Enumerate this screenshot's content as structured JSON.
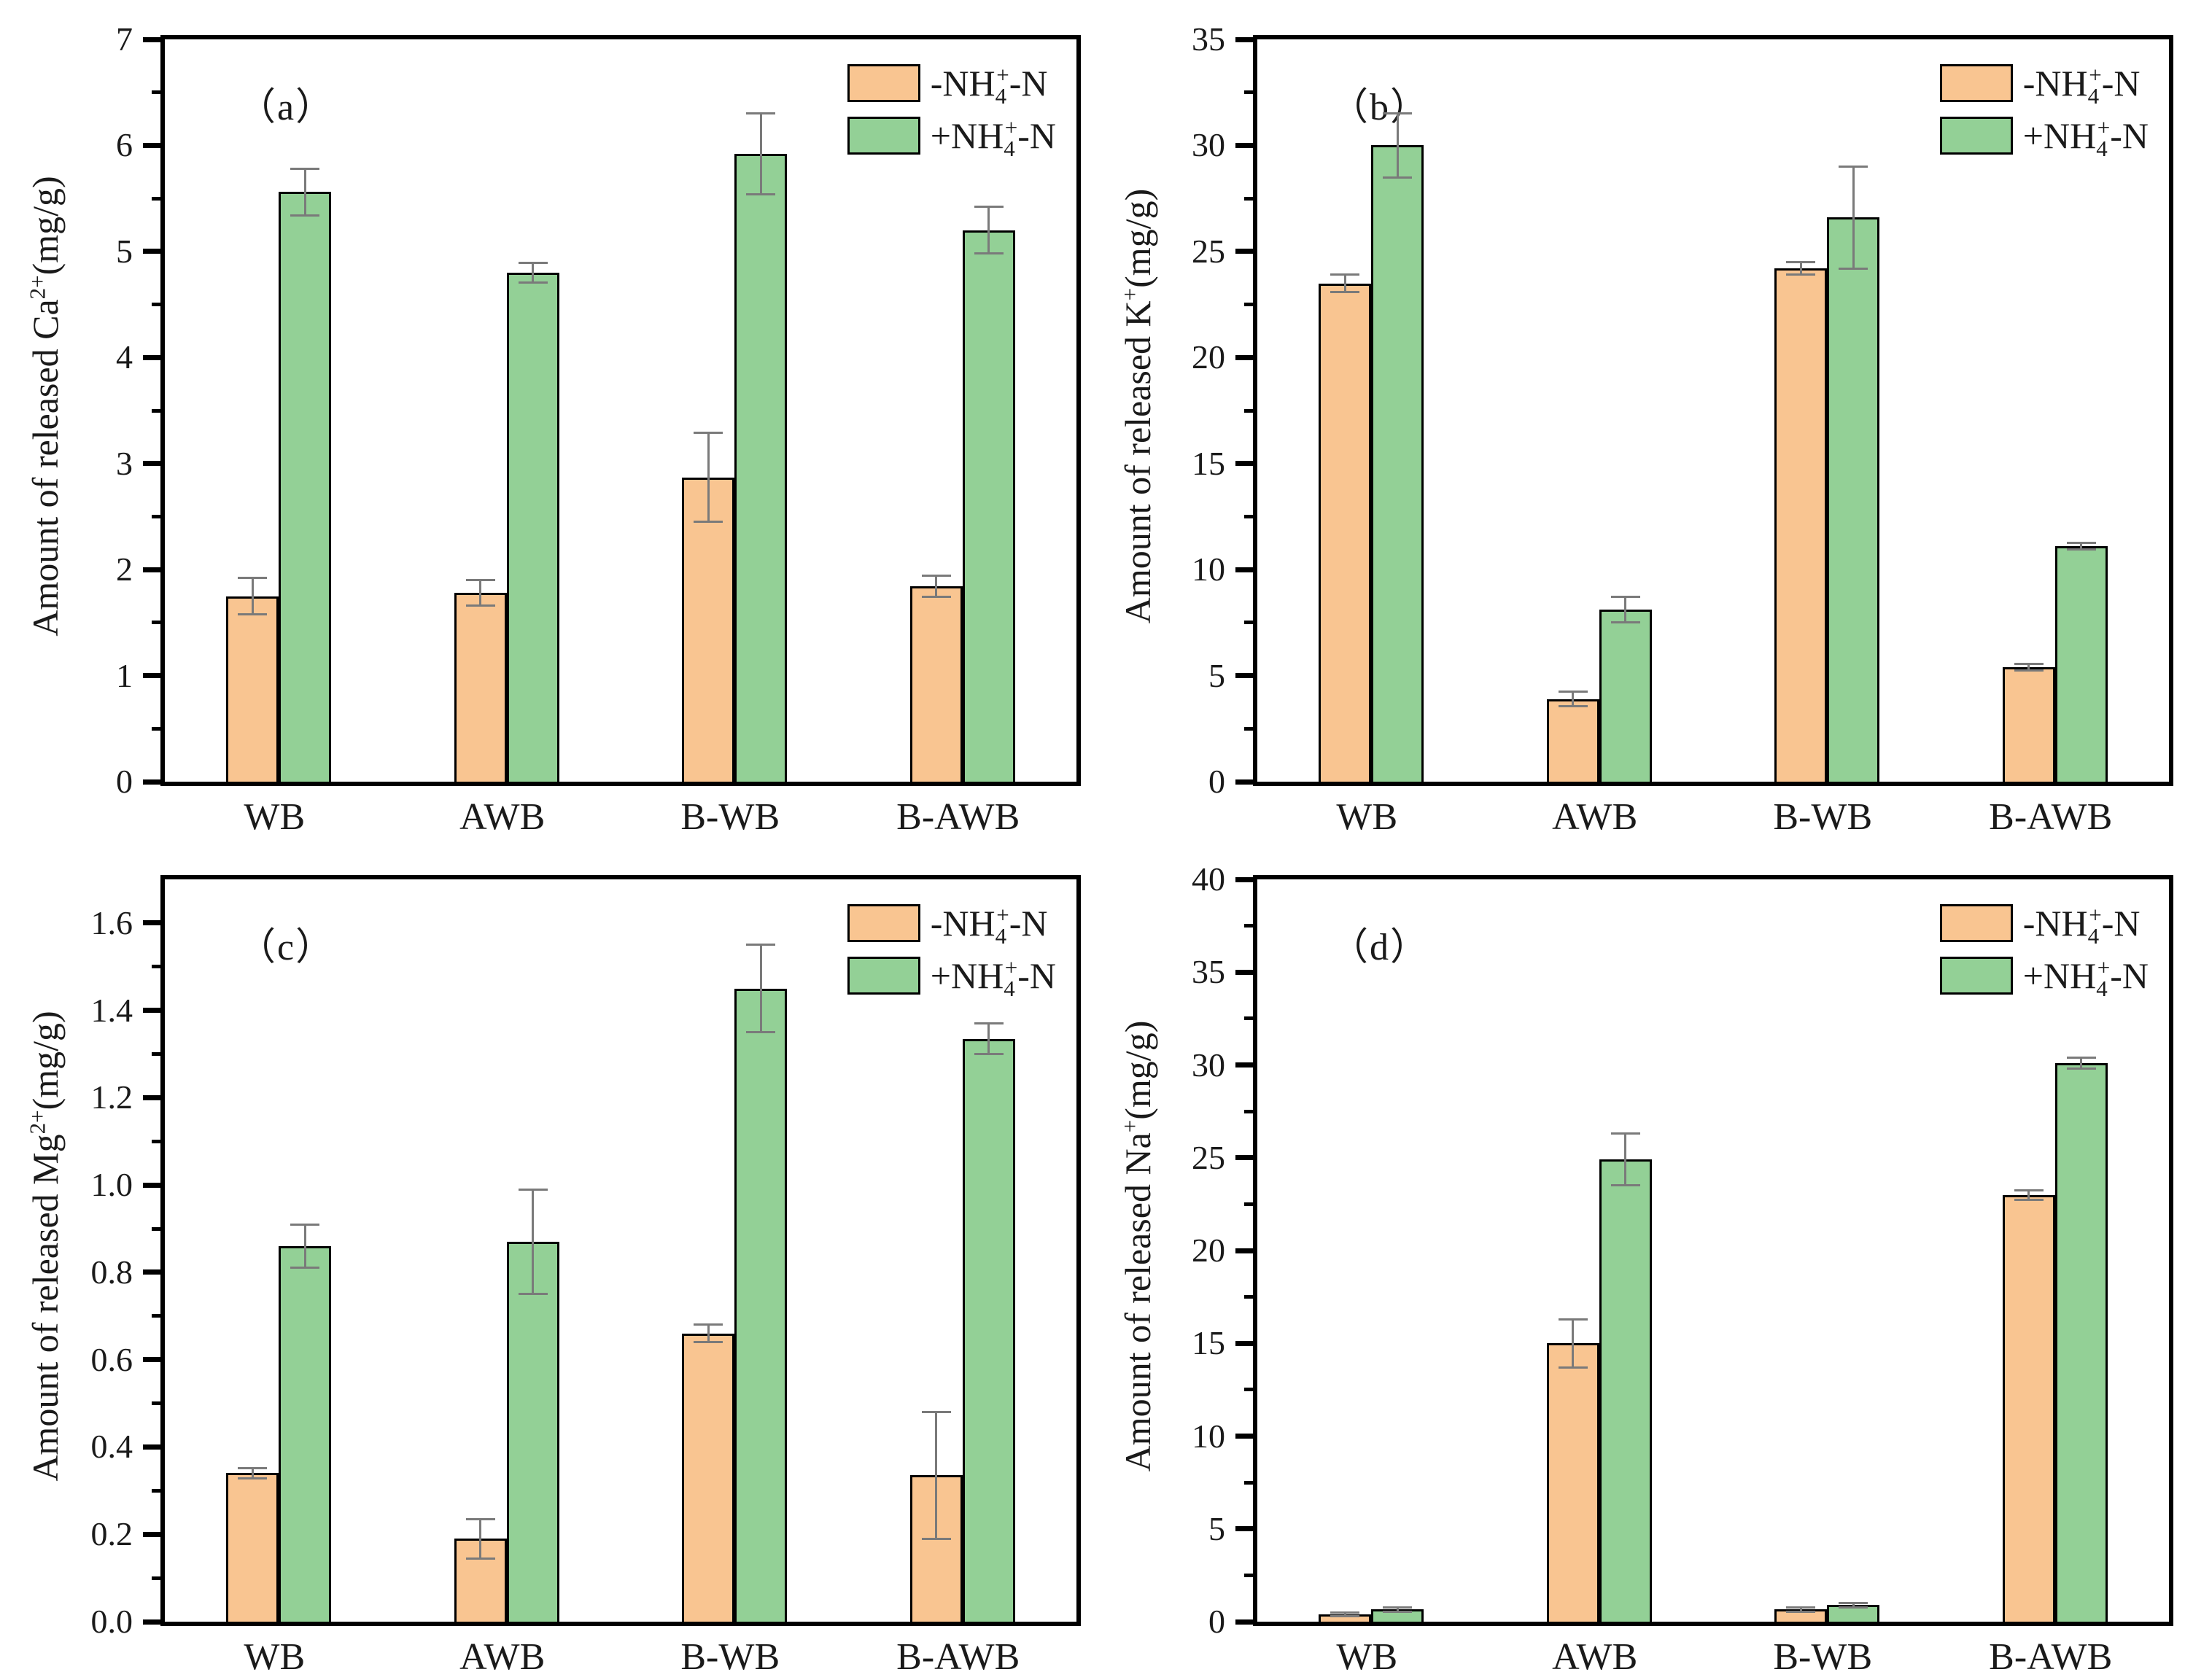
{
  "figure": {
    "background": "#ffffff",
    "frame_color": "#000000",
    "bar_edge_color": "#000000",
    "error_bar_color": "#7a7a7a",
    "series": [
      {
        "key": "minus-nh4",
        "color": "#F9C591",
        "label_text": "-NH4+-N",
        "label_parts": [
          {
            "t": "-NH"
          },
          {
            "t": "4",
            "sub": true
          },
          {
            "t": "+",
            "sup": true,
            "stack": true
          },
          {
            "t": "-N"
          }
        ]
      },
      {
        "key": "plus-nh4",
        "color": "#93D096",
        "label_text": "+NH4+-N",
        "label_parts": [
          {
            "t": "+NH"
          },
          {
            "t": "4",
            "sub": true
          },
          {
            "t": "+",
            "sup": true,
            "stack": true
          },
          {
            "t": "-N"
          }
        ]
      }
    ]
  },
  "chart_data": [
    {
      "type": "bar",
      "panel_tag": "（a）",
      "ylabel_text": "Amount of released Ca2+(mg/g)",
      "ylabel_parts": [
        {
          "t": "Amount of released Ca"
        },
        {
          "t": "2+",
          "sup": true
        },
        {
          "t": "(mg/g)"
        }
      ],
      "categories": [
        "WB",
        "AWB",
        "B-WB",
        "B-AWB"
      ],
      "ylim": [
        0,
        7
      ],
      "ytick_step": 1,
      "ytick_decimals": 0,
      "grid": false,
      "legend_position": "top-right",
      "series": [
        {
          "name": "-NH4+-N",
          "values": [
            1.75,
            1.78,
            2.87,
            1.84
          ],
          "errors": [
            0.17,
            0.12,
            0.42,
            0.1
          ]
        },
        {
          "name": "+NH4+-N",
          "values": [
            5.56,
            4.8,
            5.92,
            5.2
          ],
          "errors": [
            0.22,
            0.09,
            0.38,
            0.22
          ]
        }
      ]
    },
    {
      "type": "bar",
      "panel_tag": "（b）",
      "ylabel_text": "Amount of released K+(mg/g)",
      "ylabel_parts": [
        {
          "t": "Amount of released K"
        },
        {
          "t": "+",
          "sup": true
        },
        {
          "t": "(mg/g)"
        }
      ],
      "categories": [
        "WB",
        "AWB",
        "B-WB",
        "B-AWB"
      ],
      "ylim": [
        0,
        35
      ],
      "ytick_step": 5,
      "ytick_decimals": 0,
      "grid": false,
      "legend_position": "top-right",
      "series": [
        {
          "name": "-NH4+-N",
          "values": [
            23.5,
            3.9,
            24.2,
            5.4
          ],
          "errors": [
            0.4,
            0.35,
            0.3,
            0.15
          ]
        },
        {
          "name": "+NH4+-N",
          "values": [
            30.0,
            8.1,
            26.6,
            11.1
          ],
          "errors": [
            1.5,
            0.6,
            2.4,
            0.15
          ]
        }
      ]
    },
    {
      "type": "bar",
      "panel_tag": "（c）",
      "ylabel_text": "Amount of released Mg2+(mg/g)",
      "ylabel_parts": [
        {
          "t": "Amount of released Mg"
        },
        {
          "t": "2+",
          "sup": true
        },
        {
          "t": "(mg/g)"
        }
      ],
      "categories": [
        "WB",
        "AWB",
        "B-WB",
        "B-AWB"
      ],
      "ylim": [
        0,
        1.7
      ],
      "ytick_step": 0.2,
      "ytick_decimals": 1,
      "grid": false,
      "legend_position": "top-right",
      "series": [
        {
          "name": "-NH4+-N",
          "values": [
            0.34,
            0.19,
            0.66,
            0.335
          ],
          "errors": [
            0.012,
            0.045,
            0.02,
            0.145
          ]
        },
        {
          "name": "+NH4+-N",
          "values": [
            0.86,
            0.87,
            1.45,
            1.335
          ],
          "errors": [
            0.05,
            0.12,
            0.1,
            0.035
          ]
        }
      ]
    },
    {
      "type": "bar",
      "panel_tag": "（d）",
      "ylabel_text": "Amount of released Na+(mg/g)",
      "ylabel_parts": [
        {
          "t": "Amount of released Na"
        },
        {
          "t": "+",
          "sup": true
        },
        {
          "t": "(mg/g)"
        }
      ],
      "categories": [
        "WB",
        "AWB",
        "B-WB",
        "B-AWB"
      ],
      "ylim": [
        0,
        40
      ],
      "ytick_step": 5,
      "ytick_decimals": 0,
      "grid": false,
      "legend_position": "top-right",
      "series": [
        {
          "name": "-NH4+-N",
          "values": [
            0.4,
            15.0,
            0.65,
            23.0
          ],
          "errors": [
            0.1,
            1.3,
            0.12,
            0.25
          ]
        },
        {
          "name": "+NH4+-N",
          "values": [
            0.65,
            24.9,
            0.9,
            30.1
          ],
          "errors": [
            0.12,
            1.4,
            0.12,
            0.3
          ]
        }
      ]
    }
  ]
}
